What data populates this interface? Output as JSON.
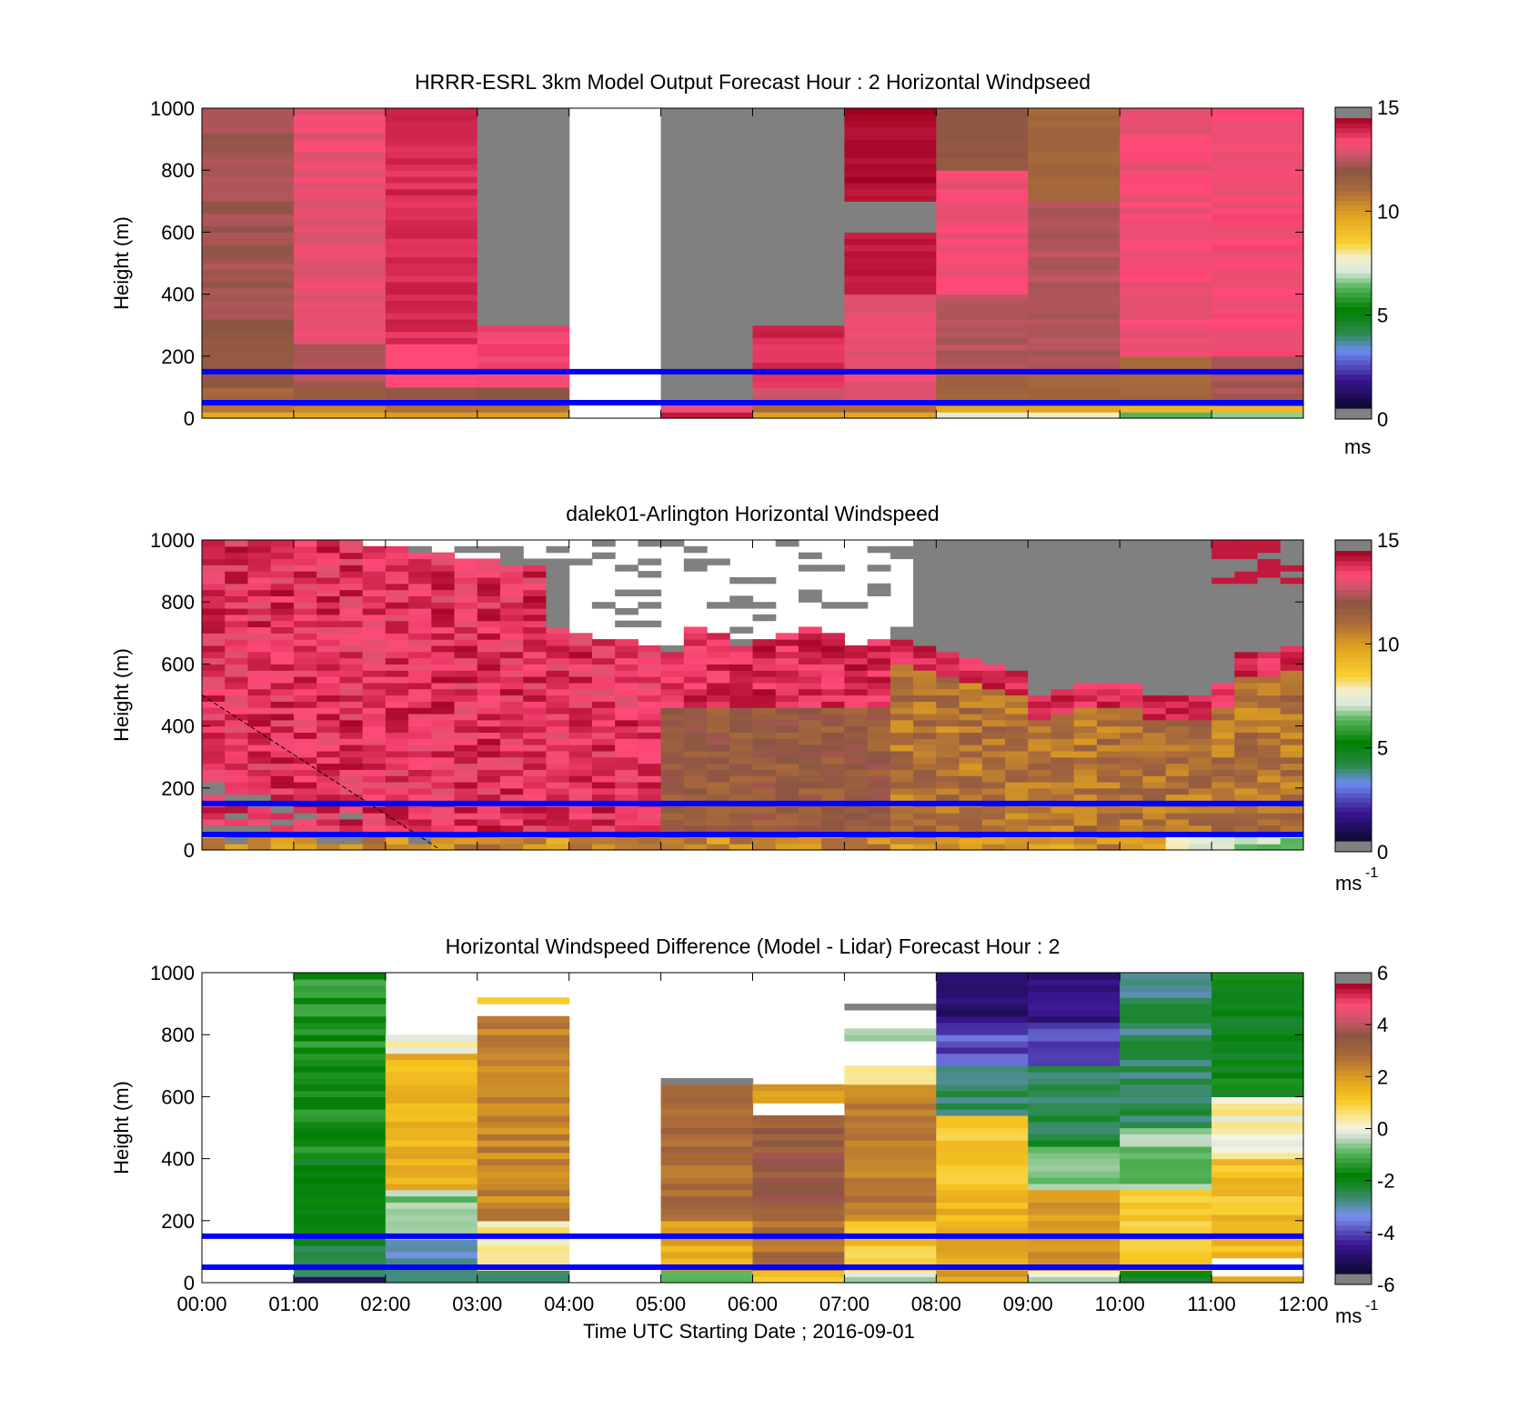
{
  "chart_data": [
    {
      "type": "heatmap",
      "title": "HRRR-ESRL 3km Model Output   Forecast Hour : 2 Horizontal Windpseed",
      "ylabel": "Height (m)",
      "xlabel": "",
      "xlim": [
        0,
        12
      ],
      "ylim": [
        0,
        1000
      ],
      "yticks": [
        "0",
        "200",
        "400",
        "600",
        "800",
        "1000"
      ],
      "x_tick_values": [
        0,
        1,
        2,
        3,
        4,
        5,
        6,
        7,
        8,
        9,
        10,
        11,
        12
      ],
      "xticklabels_shown": false,
      "colorbar": {
        "min": 0,
        "max": 15,
        "ticks": [
          "0",
          "5",
          "10",
          "15"
        ],
        "unit": "ms",
        "unit_sup": "",
        "palette": "speed"
      },
      "reference_lines_m": [
        50,
        150
      ],
      "reference_line_color": "#0000ff",
      "value_pattern": "model",
      "missing_color": "#808080",
      "missing_note": "gray = missing, 03:00–04:00 and 05:00–07:00 above ~300 m; white gap 04:00–05:00",
      "x_bins": [
        "00:00",
        "01:00",
        "02:00",
        "03:00",
        "04:00",
        "05:00",
        "06:00",
        "07:00",
        "08:00",
        "09:00",
        "10:00",
        "11:00"
      ]
    },
    {
      "type": "heatmap",
      "title": "dalek01-Arlington  Horizontal Windspeed",
      "ylabel": "Height (m)",
      "xlabel": "",
      "xlim": [
        0,
        12
      ],
      "ylim": [
        0,
        1000
      ],
      "yticks": [
        "0",
        "200",
        "400",
        "600",
        "800",
        "1000"
      ],
      "x_tick_values": [
        0,
        1,
        2,
        3,
        4,
        5,
        6,
        7,
        8,
        9,
        10,
        11,
        12
      ],
      "xticklabels_shown": false,
      "colorbar": {
        "min": 0,
        "max": 15,
        "ticks": [
          "0",
          "5",
          "10",
          "15"
        ],
        "unit": "ms",
        "unit_sup": "-1",
        "palette": "speed"
      },
      "reference_lines_m": [
        50,
        150
      ],
      "reference_line_color": "#0000ff",
      "value_pattern": "lidar",
      "missing_color": "#808080",
      "dashed_line": {
        "from": [
          0,
          500
        ],
        "to": [
          2.6,
          0
        ],
        "color": "#000000"
      }
    },
    {
      "type": "heatmap",
      "title": "Horizontal Windspeed Difference (Model - Lidar) Forecast Hour : 2",
      "ylabel": "Height (m)",
      "xlabel": "Time UTC  Starting Date ; 2016-09-01",
      "xlim": [
        0,
        12
      ],
      "ylim": [
        0,
        1000
      ],
      "yticks": [
        "0",
        "200",
        "400",
        "600",
        "800",
        "1000"
      ],
      "x_tick_values": [
        0,
        1,
        2,
        3,
        4,
        5,
        6,
        7,
        8,
        9,
        10,
        11,
        12
      ],
      "xticklabels": [
        "00:00",
        "01:00",
        "02:00",
        "03:00",
        "04:00",
        "05:00",
        "06:00",
        "07:00",
        "08:00",
        "09:00",
        "10:00",
        "11:00",
        "12:00"
      ],
      "xticklabels_shown": true,
      "colorbar": {
        "min": -6,
        "max": 6,
        "ticks": [
          "-6",
          "-4",
          "-2",
          "0",
          "2",
          "4",
          "6"
        ],
        "unit": "ms",
        "unit_sup": "-1",
        "palette": "diff"
      },
      "reference_lines_m": [
        50,
        150
      ],
      "reference_line_color": "#0000ff",
      "value_pattern": "diff"
    }
  ]
}
